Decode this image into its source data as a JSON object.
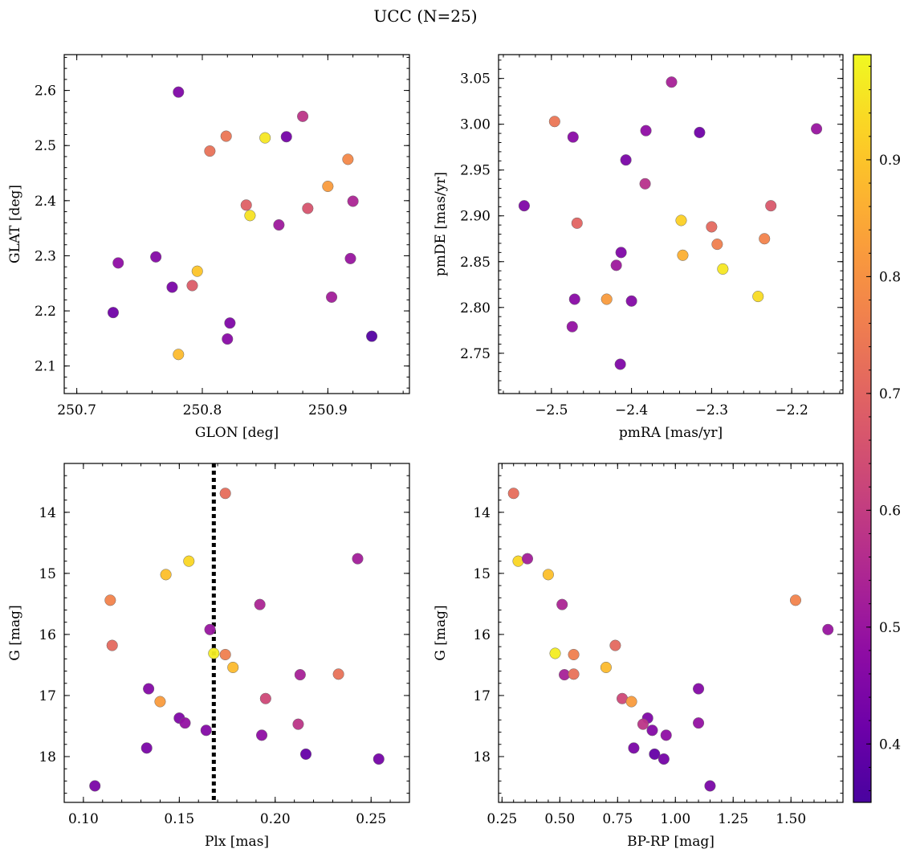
{
  "figure": {
    "title": "UCC (N=25)",
    "colorbar": {
      "colormap": "plasma",
      "range": [
        0.35,
        0.99
      ],
      "ticks": [
        0.4,
        0.5,
        0.6,
        0.7,
        0.8,
        0.9
      ],
      "tick_labels": [
        "0.4",
        "0.5",
        "0.6",
        "0.7",
        "0.8",
        "0.9"
      ]
    }
  },
  "chart_data": [
    {
      "type": "scatter",
      "xlabel": "GLON [deg]",
      "ylabel": "GLAT [deg]",
      "xlim": [
        250.69,
        250.965
      ],
      "ylim": [
        2.05,
        2.665
      ],
      "y_inverted": false,
      "xticks": [
        250.7,
        250.8,
        250.9
      ],
      "xtick_labels": [
        "250.7",
        "250.8",
        "250.9"
      ],
      "yticks": [
        2.1,
        2.2,
        2.3,
        2.4,
        2.5,
        2.6
      ],
      "ytick_labels": [
        "2.1",
        "2.2",
        "2.3",
        "2.4",
        "2.5",
        "2.6"
      ],
      "points": [
        {
          "x": 250.781,
          "y": 2.597,
          "c": 0.45
        },
        {
          "x": 250.88,
          "y": 2.553,
          "c": 0.58
        },
        {
          "x": 250.819,
          "y": 2.517,
          "c": 0.74
        },
        {
          "x": 250.85,
          "y": 2.514,
          "c": 0.96
        },
        {
          "x": 250.867,
          "y": 2.516,
          "c": 0.43
        },
        {
          "x": 250.806,
          "y": 2.49,
          "c": 0.73
        },
        {
          "x": 250.916,
          "y": 2.475,
          "c": 0.78
        },
        {
          "x": 250.9,
          "y": 2.426,
          "c": 0.82
        },
        {
          "x": 250.92,
          "y": 2.399,
          "c": 0.54
        },
        {
          "x": 250.835,
          "y": 2.392,
          "c": 0.69
        },
        {
          "x": 250.884,
          "y": 2.386,
          "c": 0.66
        },
        {
          "x": 250.838,
          "y": 2.373,
          "c": 0.95
        },
        {
          "x": 250.861,
          "y": 2.356,
          "c": 0.51
        },
        {
          "x": 250.763,
          "y": 2.298,
          "c": 0.46
        },
        {
          "x": 250.918,
          "y": 2.295,
          "c": 0.5
        },
        {
          "x": 250.733,
          "y": 2.287,
          "c": 0.48
        },
        {
          "x": 250.796,
          "y": 2.272,
          "c": 0.9
        },
        {
          "x": 250.792,
          "y": 2.246,
          "c": 0.68
        },
        {
          "x": 250.776,
          "y": 2.243,
          "c": 0.44
        },
        {
          "x": 250.903,
          "y": 2.225,
          "c": 0.52
        },
        {
          "x": 250.729,
          "y": 2.197,
          "c": 0.42
        },
        {
          "x": 250.822,
          "y": 2.178,
          "c": 0.45
        },
        {
          "x": 250.935,
          "y": 2.154,
          "c": 0.37
        },
        {
          "x": 250.82,
          "y": 2.149,
          "c": 0.47
        },
        {
          "x": 250.781,
          "y": 2.121,
          "c": 0.88
        }
      ]
    },
    {
      "type": "scatter",
      "xlabel": "pmRA [mas/yr]",
      "ylabel": "pmDE [mas/yr]",
      "xlim": [
        -2.566,
        -2.136
      ],
      "ylim": [
        2.706,
        3.076
      ],
      "y_inverted": false,
      "xticks": [
        -2.5,
        -2.4,
        -2.3,
        -2.2
      ],
      "xtick_labels": [
        "−2.5",
        "−2.4",
        "−2.3",
        "−2.2"
      ],
      "yticks": [
        2.75,
        2.8,
        2.85,
        2.9,
        2.95,
        3.0,
        3.05
      ],
      "ytick_labels": [
        "2.75",
        "2.80",
        "2.85",
        "2.90",
        "2.95",
        "3.00",
        "3.05"
      ],
      "points": [
        {
          "x": -2.35,
          "y": 3.046,
          "c": 0.53
        },
        {
          "x": -2.496,
          "y": 3.003,
          "c": 0.74
        },
        {
          "x": -2.169,
          "y": 2.995,
          "c": 0.5
        },
        {
          "x": -2.382,
          "y": 2.993,
          "c": 0.48
        },
        {
          "x": -2.315,
          "y": 2.991,
          "c": 0.42
        },
        {
          "x": -2.473,
          "y": 2.986,
          "c": 0.47
        },
        {
          "x": -2.407,
          "y": 2.961,
          "c": 0.44
        },
        {
          "x": -2.383,
          "y": 2.935,
          "c": 0.57
        },
        {
          "x": -2.226,
          "y": 2.911,
          "c": 0.67
        },
        {
          "x": -2.534,
          "y": 2.911,
          "c": 0.45
        },
        {
          "x": -2.338,
          "y": 2.895,
          "c": 0.92
        },
        {
          "x": -2.468,
          "y": 2.892,
          "c": 0.7
        },
        {
          "x": -2.3,
          "y": 2.888,
          "c": 0.71
        },
        {
          "x": -2.234,
          "y": 2.875,
          "c": 0.77
        },
        {
          "x": -2.293,
          "y": 2.869,
          "c": 0.76
        },
        {
          "x": -2.413,
          "y": 2.86,
          "c": 0.45
        },
        {
          "x": -2.336,
          "y": 2.857,
          "c": 0.86
        },
        {
          "x": -2.419,
          "y": 2.846,
          "c": 0.51
        },
        {
          "x": -2.286,
          "y": 2.842,
          "c": 0.96
        },
        {
          "x": -2.242,
          "y": 2.812,
          "c": 0.94
        },
        {
          "x": -2.431,
          "y": 2.809,
          "c": 0.82
        },
        {
          "x": -2.471,
          "y": 2.809,
          "c": 0.47
        },
        {
          "x": -2.4,
          "y": 2.807,
          "c": 0.46
        },
        {
          "x": -2.474,
          "y": 2.779,
          "c": 0.49
        },
        {
          "x": -2.414,
          "y": 2.738,
          "c": 0.45
        }
      ]
    },
    {
      "type": "scatter",
      "xlabel": "Plx [mas]",
      "ylabel": "G [mag]",
      "xlim": [
        0.09,
        0.27
      ],
      "ylim": [
        13.2,
        18.75
      ],
      "y_inverted": true,
      "xticks": [
        0.1,
        0.15,
        0.2,
        0.25
      ],
      "xtick_labels": [
        "0.10",
        "0.15",
        "0.20",
        "0.25"
      ],
      "yticks": [
        14,
        15,
        16,
        17,
        18
      ],
      "ytick_labels": [
        "14",
        "15",
        "16",
        "17",
        "18"
      ],
      "vline": {
        "x": 0.168
      },
      "points": [
        {
          "x": 0.174,
          "y": 13.69,
          "c": 0.72
        },
        {
          "x": 0.155,
          "y": 14.8,
          "c": 0.93
        },
        {
          "x": 0.243,
          "y": 14.76,
          "c": 0.52
        },
        {
          "x": 0.143,
          "y": 15.02,
          "c": 0.89
        },
        {
          "x": 0.114,
          "y": 15.44,
          "c": 0.77
        },
        {
          "x": 0.192,
          "y": 15.51,
          "c": 0.54
        },
        {
          "x": 0.166,
          "y": 15.92,
          "c": 0.5
        },
        {
          "x": 0.115,
          "y": 16.18,
          "c": 0.71
        },
        {
          "x": 0.168,
          "y": 16.31,
          "c": 0.97
        },
        {
          "x": 0.174,
          "y": 16.33,
          "c": 0.76
        },
        {
          "x": 0.178,
          "y": 16.54,
          "c": 0.88
        },
        {
          "x": 0.213,
          "y": 16.66,
          "c": 0.53
        },
        {
          "x": 0.233,
          "y": 16.65,
          "c": 0.73
        },
        {
          "x": 0.134,
          "y": 16.89,
          "c": 0.46
        },
        {
          "x": 0.195,
          "y": 17.05,
          "c": 0.63
        },
        {
          "x": 0.14,
          "y": 17.1,
          "c": 0.82
        },
        {
          "x": 0.15,
          "y": 17.37,
          "c": 0.45
        },
        {
          "x": 0.153,
          "y": 17.45,
          "c": 0.49
        },
        {
          "x": 0.212,
          "y": 17.47,
          "c": 0.58
        },
        {
          "x": 0.164,
          "y": 17.57,
          "c": 0.46
        },
        {
          "x": 0.193,
          "y": 17.65,
          "c": 0.48
        },
        {
          "x": 0.133,
          "y": 17.86,
          "c": 0.44
        },
        {
          "x": 0.216,
          "y": 17.96,
          "c": 0.4
        },
        {
          "x": 0.254,
          "y": 18.04,
          "c": 0.43
        },
        {
          "x": 0.106,
          "y": 18.48,
          "c": 0.44
        }
      ]
    },
    {
      "type": "scatter",
      "xlabel": "BP-RP [mag]",
      "ylabel": "G [mag]",
      "xlim": [
        0.235,
        1.725
      ],
      "ylim": [
        13.2,
        18.75
      ],
      "y_inverted": true,
      "xticks": [
        0.25,
        0.5,
        0.75,
        1.0,
        1.25,
        1.5
      ],
      "xtick_labels": [
        "0.25",
        "0.50",
        "0.75",
        "1.00",
        "1.25",
        "1.50"
      ],
      "yticks": [
        14,
        15,
        16,
        17,
        18
      ],
      "ytick_labels": [
        "14",
        "15",
        "16",
        "17",
        "18"
      ],
      "points": [
        {
          "x": 0.3,
          "y": 13.69,
          "c": 0.72
        },
        {
          "x": 0.32,
          "y": 14.8,
          "c": 0.93
        },
        {
          "x": 0.36,
          "y": 14.76,
          "c": 0.52
        },
        {
          "x": 0.45,
          "y": 15.02,
          "c": 0.89
        },
        {
          "x": 1.52,
          "y": 15.44,
          "c": 0.77
        },
        {
          "x": 0.51,
          "y": 15.51,
          "c": 0.54
        },
        {
          "x": 1.66,
          "y": 15.92,
          "c": 0.5
        },
        {
          "x": 0.74,
          "y": 16.18,
          "c": 0.71
        },
        {
          "x": 0.48,
          "y": 16.31,
          "c": 0.97
        },
        {
          "x": 0.56,
          "y": 16.33,
          "c": 0.76
        },
        {
          "x": 0.7,
          "y": 16.54,
          "c": 0.88
        },
        {
          "x": 0.52,
          "y": 16.66,
          "c": 0.53
        },
        {
          "x": 0.56,
          "y": 16.65,
          "c": 0.73
        },
        {
          "x": 1.1,
          "y": 16.89,
          "c": 0.46
        },
        {
          "x": 0.77,
          "y": 17.05,
          "c": 0.63
        },
        {
          "x": 0.81,
          "y": 17.1,
          "c": 0.82
        },
        {
          "x": 0.88,
          "y": 17.37,
          "c": 0.45
        },
        {
          "x": 1.1,
          "y": 17.45,
          "c": 0.49
        },
        {
          "x": 0.86,
          "y": 17.47,
          "c": 0.58
        },
        {
          "x": 0.9,
          "y": 17.57,
          "c": 0.46
        },
        {
          "x": 0.96,
          "y": 17.65,
          "c": 0.48
        },
        {
          "x": 0.82,
          "y": 17.86,
          "c": 0.44
        },
        {
          "x": 0.91,
          "y": 17.96,
          "c": 0.4
        },
        {
          "x": 0.95,
          "y": 18.04,
          "c": 0.43
        },
        {
          "x": 1.15,
          "y": 18.48,
          "c": 0.44
        }
      ]
    }
  ]
}
